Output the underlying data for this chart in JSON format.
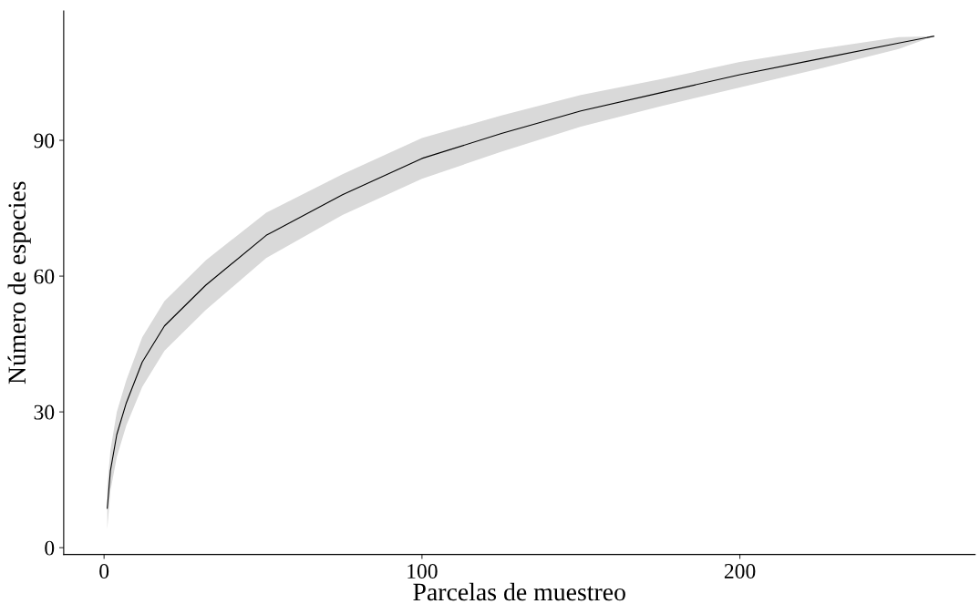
{
  "chart_data": {
    "type": "line",
    "xlabel": "Parcelas de muestreo",
    "ylabel": "Número de especies",
    "xlim": [
      -12.7,
      274
    ],
    "ylim": [
      -1.5,
      118.6
    ],
    "xticks": [
      0,
      100,
      200
    ],
    "yticks": [
      0,
      30,
      60,
      90
    ],
    "grid": false,
    "marker": "none",
    "line_style": "solid",
    "series": [
      {
        "color": "#000000",
        "x": [
          1,
          2,
          4,
          7,
          12,
          19,
          32,
          51,
          75,
          100,
          125,
          150,
          175,
          200,
          225,
          250,
          261
        ],
        "values": [
          8.7,
          17,
          25,
          32,
          41,
          49,
          58,
          69,
          78,
          86,
          91.5,
          96.5,
          100.5,
          104.5,
          108,
          111.5,
          113
        ],
        "lower": [
          4,
          12.5,
          20,
          27,
          35.5,
          43.5,
          52.5,
          64,
          73.5,
          81.5,
          87.5,
          93,
          97.5,
          101.7,
          105.8,
          110.2,
          113
        ],
        "upper": [
          13.4,
          21.5,
          30,
          37,
          46.5,
          54.5,
          63.5,
          74,
          82.5,
          90.5,
          95.5,
          100,
          103.5,
          107.3,
          110.2,
          112.8,
          113
        ]
      }
    ]
  }
}
